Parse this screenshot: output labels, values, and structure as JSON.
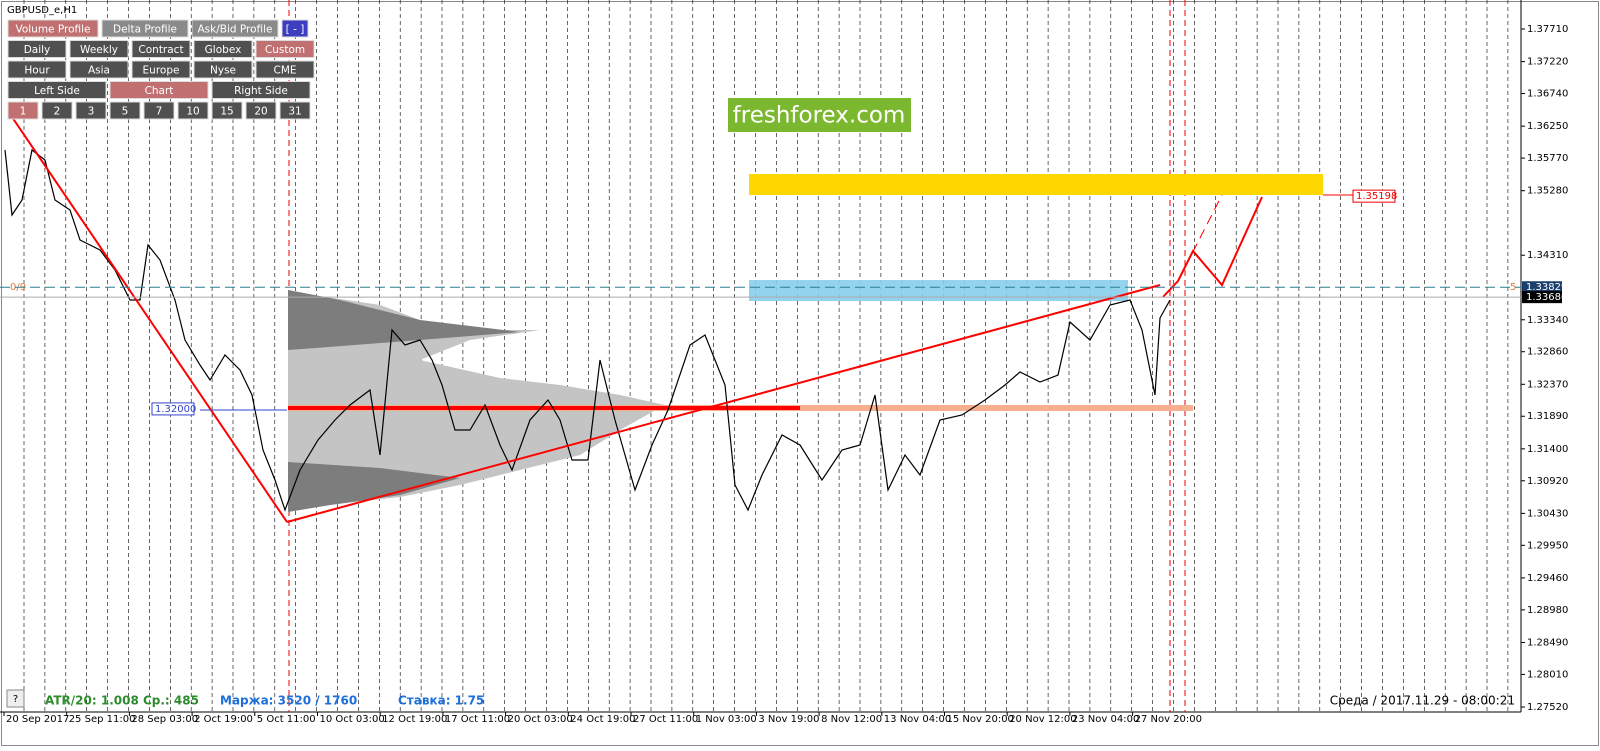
{
  "window": {
    "symbol": "GBPUSD_e,H1",
    "watermark": "freshforex.com",
    "level_left": "0/9",
    "level_right": "5",
    "help": "?"
  },
  "buttons": [
    [
      {
        "label": "Volume Profile",
        "active": true
      },
      {
        "label": "Delta Profile"
      },
      {
        "label": "Ask/Bid Profile"
      },
      {
        "label": "[ - ]",
        "blue": true
      }
    ],
    [
      {
        "label": "Daily"
      },
      {
        "label": "Weekly"
      },
      {
        "label": "Contract"
      },
      {
        "label": "Globex"
      },
      {
        "label": "Custom",
        "active": true
      }
    ],
    [
      {
        "label": "Hour"
      },
      {
        "label": "Asia"
      },
      {
        "label": "Europe"
      },
      {
        "label": "Nyse"
      },
      {
        "label": "CME"
      }
    ],
    [
      {
        "label": "Left Side"
      },
      {
        "label": "Chart",
        "active": true
      },
      {
        "label": "Right Side"
      }
    ],
    [
      {
        "label": "1",
        "active": true
      },
      {
        "label": "2"
      },
      {
        "label": "3"
      },
      {
        "label": "5"
      },
      {
        "label": "7"
      },
      {
        "label": "10"
      },
      {
        "label": "15"
      },
      {
        "label": "20"
      },
      {
        "label": "31"
      }
    ]
  ],
  "price_axis": {
    "ylim": [
      1.27445,
      1.38146
    ],
    "yticks": [
      {
        "value": 1.3771,
        "label": "1.37710"
      },
      {
        "value": 1.3722,
        "label": "1.37220"
      },
      {
        "value": 1.3674,
        "label": "1.36740"
      },
      {
        "value": 1.3625,
        "label": "1.36250"
      },
      {
        "value": 1.3577,
        "label": "1.35770"
      },
      {
        "value": 1.3528,
        "label": "1.35280"
      },
      {
        "value": 1.3431,
        "label": "1.34310"
      },
      {
        "value": 1.3334,
        "label": "1.33340"
      },
      {
        "value": 1.3286,
        "label": "1.32860"
      },
      {
        "value": 1.3237,
        "label": "1.32370"
      },
      {
        "value": 1.3189,
        "label": "1.31890"
      },
      {
        "value": 1.314,
        "label": "1.31400"
      },
      {
        "value": 1.3092,
        "label": "1.30920"
      },
      {
        "value": 1.3043,
        "label": "1.30430"
      },
      {
        "value": 1.2995,
        "label": "1.29950"
      },
      {
        "value": 1.2946,
        "label": "1.29460"
      },
      {
        "value": 1.2898,
        "label": "1.28980"
      },
      {
        "value": 1.2849,
        "label": "1.28490"
      },
      {
        "value": 1.2801,
        "label": "1.28010"
      },
      {
        "value": 1.2752,
        "label": "1.27520"
      }
    ],
    "levels": [
      {
        "value": 1.35198,
        "label": "1.35198"
      },
      {
        "value": 1.32,
        "label": "1.32000"
      },
      {
        "value": 1.33829,
        "label": "1.33829"
      },
      {
        "value": 1.3368,
        "label": "1.33680"
      }
    ]
  },
  "time_axis": [
    "20 Sep 2017",
    "25 Sep 11:00",
    "28 Sep 03:00",
    "2 Oct 19:00",
    "5 Oct 11:00",
    "10 Oct 03:00",
    "12 Oct 19:00",
    "17 Oct 11:00",
    "20 Oct 03:00",
    "24 Oct 19:00",
    "27 Oct 11:00",
    "1 Nov 03:00",
    "3 Nov 19:00",
    "8 Nov 12:00",
    "13 Nov 04:00",
    "15 Nov 20:00",
    "20 Nov 12:00",
    "23 Nov 04:00",
    "27 Nov 20:00"
  ],
  "status": {
    "atr": "ATR/20: 1.008  Ср.: 485",
    "margin": "Маржа: 3520 / 1760",
    "rate": "Ставка: 1.75",
    "clock": "Среда  /  2017.11.29  -  08:00:21"
  }
}
